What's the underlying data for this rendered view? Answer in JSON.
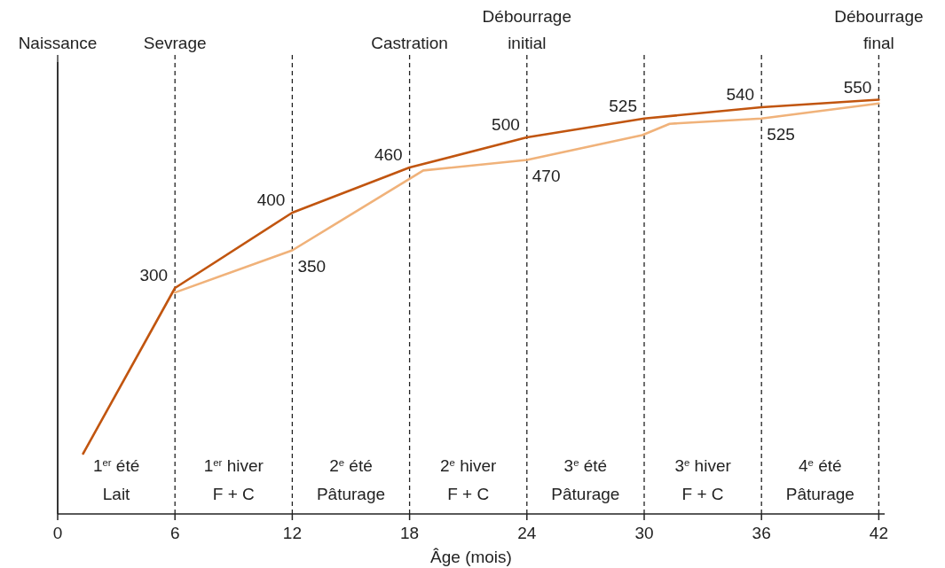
{
  "chart_data": {
    "type": "line",
    "xlabel": "Âge (mois)",
    "xlim": [
      0,
      42.3
    ],
    "xticks": [
      0,
      6,
      12,
      18,
      24,
      30,
      36,
      42
    ],
    "ylim": [
      0,
      600
    ],
    "tick_labels": "x",
    "marker": "none",
    "line_style": "solid",
    "series": [
      {
        "color": "#c1550f",
        "x": [
          1.3,
          6,
          12,
          18,
          24,
          30,
          36,
          42
        ],
        "values": [
          80,
          300,
          400,
          460,
          500,
          525,
          540,
          550
        ],
        "value_labels": [
          null,
          "300",
          "400",
          "460",
          "500",
          "525",
          "540",
          "550"
        ]
      },
      {
        "color": "#f0b27a",
        "x": [
          6,
          12,
          18.7,
          24,
          29.9,
          31.3,
          36,
          42
        ],
        "values": [
          294,
          350,
          456,
          470,
          503,
          518,
          525,
          545
        ],
        "value_labels": [
          null,
          "350",
          null,
          "470",
          null,
          null,
          "525",
          null
        ]
      }
    ],
    "ref_lines": [
      {
        "axis": "x",
        "value": 0,
        "label": "Naissance",
        "line_style": "solid"
      },
      {
        "axis": "x",
        "value": 6,
        "label": "Sevrage",
        "line_style": "dashed"
      },
      {
        "axis": "x",
        "value": 12,
        "label": null,
        "line_style": "dashed"
      },
      {
        "axis": "x",
        "value": 18,
        "label": "Castration",
        "line_style": "dashed"
      },
      {
        "axis": "x",
        "value": 24,
        "label": "Débourrage\ninitial",
        "line_style": "dashed"
      },
      {
        "axis": "x",
        "value": 30,
        "label": null,
        "line_style": "dashed"
      },
      {
        "axis": "x",
        "value": 36,
        "label": null,
        "line_style": "dashed"
      },
      {
        "axis": "x",
        "value": 42,
        "label": "Débourrage\nfinal",
        "line_style": "dashed"
      }
    ],
    "annotations": [
      "1$^{er}$ été\nLait",
      "1$^{er}$ hiver\nF + C",
      "2$^{e}$ été\nPâturage",
      "2$^{e}$ hiver\nF + C",
      "3$^{e}$ été\nPâturage",
      "3$^{e}$ hiver\nF + C",
      "4$^{e}$ été\nPâturage"
    ]
  }
}
